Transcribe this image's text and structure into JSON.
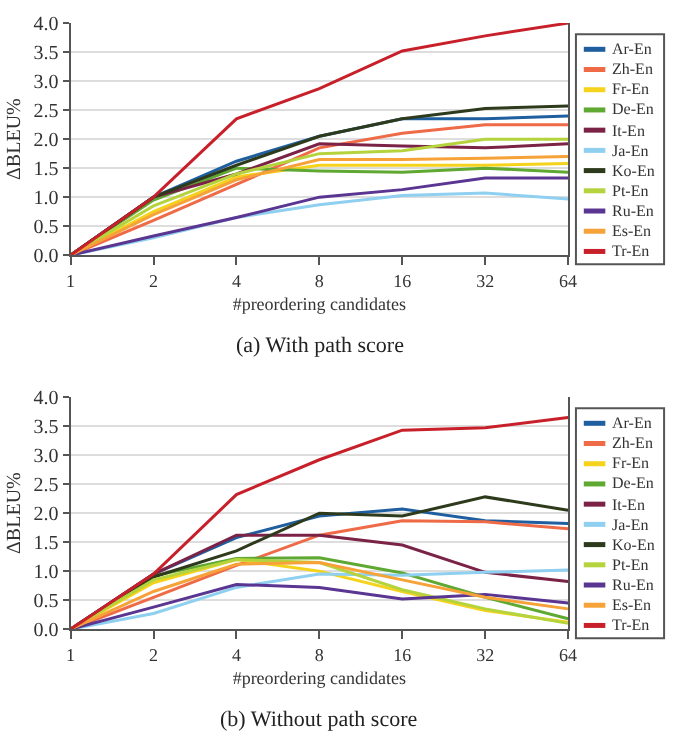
{
  "chart_data": [
    {
      "type": "line",
      "xlabel": "#preordering candidates",
      "ylabel": "ΔBLEU%",
      "annotations": [
        "(a) With path score"
      ],
      "categories": [
        "1",
        "2",
        "4",
        "8",
        "16",
        "32",
        "64"
      ],
      "ylim": [
        0,
        4
      ],
      "yticks": [
        {
          "value": 0,
          "label": "0.0"
        },
        {
          "value": 0.5,
          "label": "0.5"
        },
        {
          "value": 1,
          "label": "1.0"
        },
        {
          "value": 1.5,
          "label": "1.5"
        },
        {
          "value": 2,
          "label": "2.0"
        },
        {
          "value": 2.5,
          "label": "2.5"
        },
        {
          "value": 3,
          "label": "3.0"
        },
        {
          "value": 3.5,
          "label": "3.5"
        },
        {
          "value": 4,
          "label": "4.0"
        }
      ],
      "grid": "y",
      "legend": "right",
      "marker": "none",
      "line_style": "solid",
      "series": [
        {
          "name": "Ar-En",
          "color": "#1f5f9f",
          "values": [
            0,
            1.0,
            1.62,
            2.05,
            2.35,
            2.35,
            2.4
          ]
        },
        {
          "name": "Zh-En",
          "color": "#ef6a47",
          "values": [
            0,
            0.6,
            1.22,
            1.85,
            2.1,
            2.25,
            2.25
          ]
        },
        {
          "name": "Fr-En",
          "color": "#f5d31c",
          "values": [
            0,
            0.75,
            1.35,
            1.55,
            1.55,
            1.55,
            1.58
          ]
        },
        {
          "name": "De-En",
          "color": "#5fa832",
          "values": [
            0,
            0.95,
            1.5,
            1.45,
            1.43,
            1.5,
            1.43
          ]
        },
        {
          "name": "It-En",
          "color": "#7b2346",
          "values": [
            0,
            1.0,
            1.4,
            1.92,
            1.88,
            1.85,
            1.92
          ]
        },
        {
          "name": "Ja-En",
          "color": "#8fcff0",
          "values": [
            0,
            0.3,
            0.65,
            0.87,
            1.03,
            1.07,
            0.97
          ]
        },
        {
          "name": "Ko-En",
          "color": "#2e3a1c",
          "values": [
            0,
            1.0,
            1.55,
            2.05,
            2.35,
            2.53,
            2.57
          ]
        },
        {
          "name": "Pt-En",
          "color": "#b5d33c",
          "values": [
            0,
            0.85,
            1.4,
            1.75,
            1.8,
            2.0,
            2.0
          ]
        },
        {
          "name": "Ru-En",
          "color": "#5a3591",
          "values": [
            0,
            0.33,
            0.65,
            1.0,
            1.13,
            1.33,
            1.33
          ]
        },
        {
          "name": "Es-En",
          "color": "#f7a238",
          "values": [
            0,
            0.7,
            1.3,
            1.65,
            1.65,
            1.67,
            1.7
          ]
        },
        {
          "name": "Tr-En",
          "color": "#c8202a",
          "values": [
            0,
            1.0,
            2.35,
            2.87,
            3.52,
            3.78,
            4.0
          ]
        }
      ]
    },
    {
      "type": "line",
      "xlabel": "#preordering candidates",
      "ylabel": "ΔBLEU%",
      "annotations": [
        "(b) Without path score"
      ],
      "categories": [
        "1",
        "2",
        "4",
        "8",
        "16",
        "32",
        "64"
      ],
      "ylim": [
        0,
        4
      ],
      "yticks": [
        {
          "value": 0,
          "label": "0.0"
        },
        {
          "value": 0.5,
          "label": "0.5"
        },
        {
          "value": 1,
          "label": "1.0"
        },
        {
          "value": 1.5,
          "label": "1.5"
        },
        {
          "value": 2,
          "label": "2.0"
        },
        {
          "value": 2.5,
          "label": "2.5"
        },
        {
          "value": 3,
          "label": "3.0"
        },
        {
          "value": 3.5,
          "label": "3.5"
        },
        {
          "value": 4,
          "label": "4.0"
        }
      ],
      "grid": "y",
      "legend": "right",
      "marker": "none",
      "line_style": "solid",
      "series": [
        {
          "name": "Ar-En",
          "color": "#1f5f9f",
          "values": [
            0,
            0.95,
            1.58,
            1.95,
            2.07,
            1.87,
            1.82
          ]
        },
        {
          "name": "Zh-En",
          "color": "#ef6a47",
          "values": [
            0,
            0.55,
            1.1,
            1.62,
            1.87,
            1.85,
            1.73
          ]
        },
        {
          "name": "Fr-En",
          "color": "#f5d31c",
          "values": [
            0,
            0.8,
            1.2,
            1.0,
            0.65,
            0.32,
            0.12
          ]
        },
        {
          "name": "De-En",
          "color": "#5fa832",
          "values": [
            0,
            0.92,
            1.22,
            1.23,
            0.97,
            0.55,
            0.18
          ]
        },
        {
          "name": "It-En",
          "color": "#7b2346",
          "values": [
            0,
            0.95,
            1.62,
            1.62,
            1.45,
            0.98,
            0.82
          ]
        },
        {
          "name": "Ja-En",
          "color": "#8fcff0",
          "values": [
            0,
            0.27,
            0.72,
            0.95,
            0.93,
            0.98,
            1.02
          ]
        },
        {
          "name": "Ko-En",
          "color": "#2e3a1c",
          "values": [
            0,
            0.9,
            1.35,
            2.0,
            1.95,
            2.28,
            2.05
          ]
        },
        {
          "name": "Pt-En",
          "color": "#b5d33c",
          "values": [
            0,
            0.85,
            1.2,
            1.15,
            0.68,
            0.35,
            0.1
          ]
        },
        {
          "name": "Ru-En",
          "color": "#5a3591",
          "values": [
            0,
            0.38,
            0.77,
            0.72,
            0.52,
            0.6,
            0.45
          ]
        },
        {
          "name": "Es-En",
          "color": "#f7a238",
          "values": [
            0,
            0.65,
            1.12,
            1.15,
            0.85,
            0.55,
            0.35
          ]
        },
        {
          "name": "Tr-En",
          "color": "#c8202a",
          "values": [
            0,
            0.95,
            2.32,
            2.92,
            3.43,
            3.47,
            3.65
          ]
        }
      ]
    }
  ]
}
